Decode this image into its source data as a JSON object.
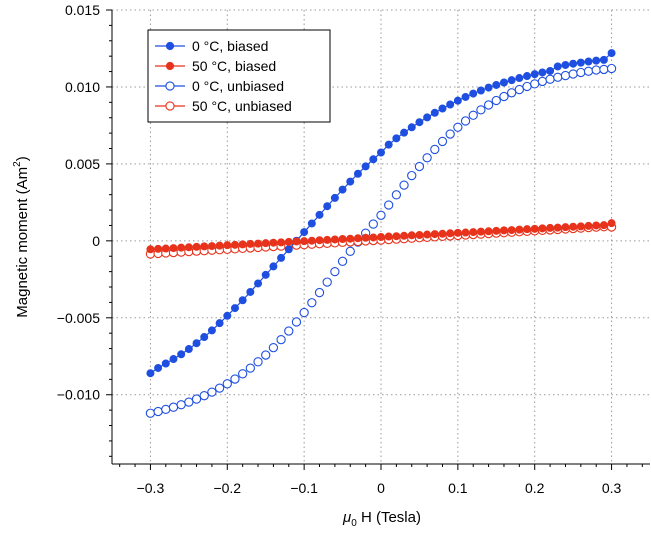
{
  "chart_data": {
    "type": "scatter",
    "title": "",
    "xlabel_symbol": "μ",
    "xlabel_subscript": "0",
    "xlabel_rest": " H (Tesla)",
    "ylabel_main": "Magnetic moment (Am",
    "ylabel_sup": "2",
    "ylabel_close": ")",
    "xlim": [
      -0.35,
      0.35
    ],
    "ylim": [
      -0.0145,
      0.015
    ],
    "xticks": [
      -0.3,
      -0.2,
      -0.1,
      0,
      0.1,
      0.2,
      0.3
    ],
    "xtick_labels": [
      "−0.3",
      "−0.2",
      "−0.1",
      "0",
      "0.1",
      "0.2",
      "0.3"
    ],
    "yticks": [
      -0.01,
      -0.005,
      0,
      0.005,
      0.01,
      0.015
    ],
    "ytick_labels": [
      "−0.010",
      "−0.005",
      "0",
      "0.005",
      "0.010",
      "0.015"
    ],
    "grid": true,
    "legend_position": "top-left",
    "series": [
      {
        "name": "0 °C, biased",
        "color": "#1f4fe0",
        "marker": "filled-circle",
        "line": true,
        "x": [
          -0.3,
          -0.29,
          -0.28,
          -0.27,
          -0.26,
          -0.25,
          -0.24,
          -0.23,
          -0.22,
          -0.21,
          -0.2,
          -0.19,
          -0.18,
          -0.17,
          -0.16,
          -0.15,
          -0.14,
          -0.13,
          -0.12,
          -0.11,
          -0.1,
          -0.09,
          -0.08,
          -0.07,
          -0.06,
          -0.05,
          -0.04,
          -0.03,
          -0.02,
          -0.01,
          0,
          0.01,
          0.02,
          0.03,
          0.04,
          0.05,
          0.06,
          0.07,
          0.08,
          0.09,
          0.1,
          0.11,
          0.12,
          0.13,
          0.14,
          0.15,
          0.16,
          0.17,
          0.18,
          0.19,
          0.2,
          0.21,
          0.22,
          0.23,
          0.24,
          0.25,
          0.26,
          0.27,
          0.28,
          0.29,
          0.3
        ],
        "y": [
          -0.0086,
          -0.00826,
          -0.00797,
          -0.00768,
          -0.00737,
          -0.00703,
          -0.00665,
          -0.00625,
          -0.00582,
          -0.00535,
          -0.00487,
          -0.00437,
          -0.00386,
          -0.00332,
          -0.00277,
          -0.00221,
          -0.00166,
          -0.00111,
          -0.00055,
          1e-05,
          0.00057,
          0.00113,
          0.00169,
          0.00225,
          0.00279,
          0.00333,
          0.00385,
          0.00436,
          0.00484,
          0.0053,
          0.00574,
          0.00625,
          0.00666,
          0.00703,
          0.00738,
          0.00771,
          0.00802,
          0.00832,
          0.0086,
          0.00886,
          0.00911,
          0.00935,
          0.00957,
          0.00977,
          0.00996,
          0.01013,
          0.01029,
          0.01044,
          0.01058,
          0.01071,
          0.01083,
          0.01094,
          0.01104,
          0.01133,
          0.01143,
          0.01151,
          0.01158,
          0.01165,
          0.01171,
          0.01176,
          0.0122
        ]
      },
      {
        "name": "50 °C, biased",
        "color": "#e8331c",
        "marker": "filled-circle",
        "line": true,
        "x": [
          -0.3,
          -0.29,
          -0.28,
          -0.27,
          -0.26,
          -0.25,
          -0.24,
          -0.23,
          -0.22,
          -0.21,
          -0.2,
          -0.19,
          -0.18,
          -0.17,
          -0.16,
          -0.15,
          -0.14,
          -0.13,
          -0.12,
          -0.11,
          -0.1,
          -0.09,
          -0.08,
          -0.07,
          -0.06,
          -0.05,
          -0.04,
          -0.03,
          -0.02,
          -0.01,
          0,
          0.01,
          0.02,
          0.03,
          0.04,
          0.05,
          0.06,
          0.07,
          0.08,
          0.09,
          0.1,
          0.11,
          0.12,
          0.13,
          0.14,
          0.15,
          0.16,
          0.17,
          0.18,
          0.19,
          0.2,
          0.21,
          0.22,
          0.23,
          0.24,
          0.25,
          0.26,
          0.27,
          0.28,
          0.29,
          0.3
        ],
        "y": [
          -0.00055,
          -0.00052,
          -0.0005,
          -0.00047,
          -0.00044,
          -0.00042,
          -0.00039,
          -0.00036,
          -0.00034,
          -0.00031,
          -0.00028,
          -0.00026,
          -0.00023,
          -0.0002,
          -0.00018,
          -0.00015,
          -0.00012,
          -0.0001,
          -7e-05,
          -4e-05,
          -2e-05,
          1e-05,
          4e-05,
          6e-05,
          9e-05,
          0.00012,
          0.00014,
          0.00017,
          0.0002,
          0.00022,
          0.00025,
          0.00028,
          0.0003,
          0.00033,
          0.00036,
          0.00038,
          0.00041,
          0.00044,
          0.00046,
          0.00049,
          0.00052,
          0.00054,
          0.00057,
          0.0006,
          0.00062,
          0.00065,
          0.00068,
          0.0007,
          0.00073,
          0.00076,
          0.00078,
          0.00081,
          0.00084,
          0.00086,
          0.00089,
          0.00092,
          0.00094,
          0.00097,
          0.001,
          0.00102,
          0.00115
        ]
      },
      {
        "name": "0 °C, unbiased",
        "color": "#1f4fe0",
        "marker": "open-circle",
        "line": false,
        "x": [
          -0.3,
          -0.29,
          -0.28,
          -0.27,
          -0.26,
          -0.25,
          -0.24,
          -0.23,
          -0.22,
          -0.21,
          -0.2,
          -0.19,
          -0.18,
          -0.17,
          -0.16,
          -0.15,
          -0.14,
          -0.13,
          -0.12,
          -0.11,
          -0.1,
          -0.09,
          -0.08,
          -0.07,
          -0.06,
          -0.05,
          -0.04,
          -0.03,
          -0.02,
          -0.01,
          0,
          0.01,
          0.02,
          0.03,
          0.04,
          0.05,
          0.06,
          0.07,
          0.08,
          0.09,
          0.1,
          0.11,
          0.12,
          0.13,
          0.14,
          0.15,
          0.16,
          0.17,
          0.18,
          0.19,
          0.2,
          0.21,
          0.22,
          0.23,
          0.24,
          0.25,
          0.26,
          0.27,
          0.28,
          0.29,
          0.3
        ],
        "y": [
          -0.0112,
          -0.01109,
          -0.01095,
          -0.01081,
          -0.01065,
          -0.01048,
          -0.01028,
          -0.01006,
          -0.00983,
          -0.00957,
          -0.00929,
          -0.00898,
          -0.00864,
          -0.00827,
          -0.00786,
          -0.00742,
          -0.00694,
          -0.00642,
          -0.00586,
          -0.00527,
          -0.00466,
          -0.00402,
          -0.00336,
          -0.00268,
          -0.002,
          -0.00133,
          -0.00068,
          -8e-05,
          0.0005,
          0.00109,
          0.00166,
          0.00233,
          0.00299,
          0.00362,
          0.00424,
          0.00483,
          0.0054,
          0.00594,
          0.00646,
          0.00694,
          0.00738,
          0.00779,
          0.00816,
          0.00851,
          0.00883,
          0.00912,
          0.00938,
          0.00962,
          0.00983,
          0.01003,
          0.0102,
          0.01036,
          0.0105,
          0.01063,
          0.01074,
          0.01084,
          0.01094,
          0.01102,
          0.0111,
          0.01114,
          0.0112
        ]
      },
      {
        "name": "50 °C, unbiased",
        "color": "#e8331c",
        "marker": "open-circle",
        "line": false,
        "x": [
          -0.3,
          -0.29,
          -0.28,
          -0.27,
          -0.26,
          -0.25,
          -0.24,
          -0.23,
          -0.22,
          -0.21,
          -0.2,
          -0.19,
          -0.18,
          -0.17,
          -0.16,
          -0.15,
          -0.14,
          -0.13,
          -0.12,
          -0.11,
          -0.1,
          -0.09,
          -0.08,
          -0.07,
          -0.06,
          -0.05,
          -0.04,
          -0.03,
          -0.02,
          -0.01,
          0,
          0.01,
          0.02,
          0.03,
          0.04,
          0.05,
          0.06,
          0.07,
          0.08,
          0.09,
          0.1,
          0.11,
          0.12,
          0.13,
          0.14,
          0.15,
          0.16,
          0.17,
          0.18,
          0.19,
          0.2,
          0.21,
          0.22,
          0.23,
          0.24,
          0.25,
          0.26,
          0.27,
          0.28,
          0.29,
          0.3
        ],
        "y": [
          -0.00085,
          -0.00082,
          -0.00079,
          -0.00076,
          -0.00073,
          -0.0007,
          -0.00067,
          -0.00064,
          -0.00061,
          -0.00058,
          -0.00055,
          -0.00052,
          -0.00049,
          -0.00046,
          -0.00043,
          -0.0004,
          -0.00037,
          -0.00034,
          -0.00031,
          -0.00028,
          -0.00025,
          -0.00022,
          -0.00019,
          -0.00016,
          -0.00013,
          -0.0001,
          -7e-05,
          -4e-05,
          -1e-05,
          2e-05,
          5e-05,
          8e-05,
          0.00011,
          0.00014,
          0.00017,
          0.0002,
          0.00023,
          0.00026,
          0.00029,
          0.00032,
          0.00035,
          0.00038,
          0.00041,
          0.00044,
          0.00047,
          0.0005,
          0.00053,
          0.00056,
          0.00059,
          0.00062,
          0.00065,
          0.00068,
          0.00071,
          0.00074,
          0.00077,
          0.0008,
          0.00083,
          0.00086,
          0.00089,
          0.00092,
          0.0009
        ]
      }
    ]
  }
}
